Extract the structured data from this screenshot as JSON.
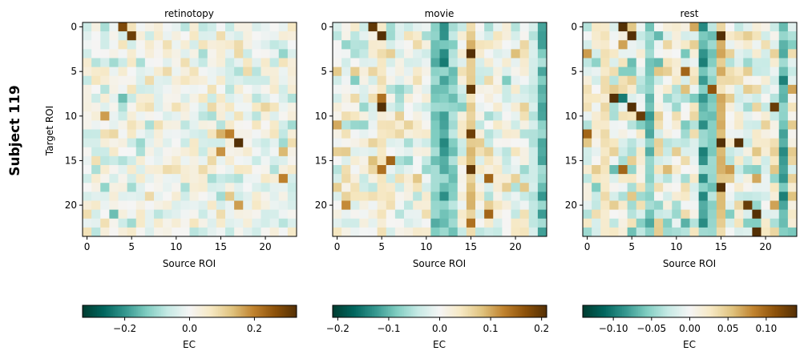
{
  "figure": {
    "subject_label": "Subject 119",
    "ylabel": "Target ROI",
    "xlabel": "Source ROI",
    "colorbar_label": "EC",
    "colormap": "BrBG_r",
    "colormap_stops": [
      "#003c30",
      "#01665e",
      "#35978f",
      "#80cdc1",
      "#c7eae5",
      "#f5f5f5",
      "#f6e8c3",
      "#dfc27d",
      "#bf812d",
      "#8c510a",
      "#543005"
    ]
  },
  "chart_data": [
    {
      "type": "heatmap",
      "title": "retinotopy",
      "xlabel": "Source ROI",
      "ylabel": "Target ROI",
      "n_rois": 24,
      "x_ticks": [
        0,
        5,
        10,
        15,
        20
      ],
      "y_ticks": [
        0,
        5,
        10,
        15,
        20
      ],
      "x_tick_labels": [
        "0",
        "5",
        "10",
        "15",
        "20"
      ],
      "y_tick_labels": [
        "0",
        "5",
        "10",
        "15",
        "20"
      ],
      "vmin": -0.33,
      "vmax": 0.33,
      "colorbar_ticks": [
        -0.2,
        0.0,
        0.2
      ],
      "colorbar_tick_labels": [
        "−0.2",
        "0.0",
        "0.2"
      ],
      "colorbar_label": "EC",
      "highlights": [
        [
          0,
          4,
          0.28
        ],
        [
          1,
          5,
          0.3
        ],
        [
          2,
          9,
          0.08
        ],
        [
          4,
          3,
          -0.1
        ],
        [
          5,
          2,
          0.06
        ],
        [
          6,
          1,
          0.07
        ],
        [
          5,
          9,
          0.09
        ],
        [
          8,
          4,
          -0.15
        ],
        [
          10,
          2,
          0.17
        ],
        [
          10,
          4,
          -0.06
        ],
        [
          12,
          15,
          0.15
        ],
        [
          12,
          16,
          0.2
        ],
        [
          13,
          17,
          0.33
        ],
        [
          14,
          15,
          0.18
        ],
        [
          14,
          22,
          0.14
        ],
        [
          15,
          1,
          0.08
        ],
        [
          17,
          22,
          0.2
        ],
        [
          18,
          5,
          -0.1
        ],
        [
          19,
          16,
          0.12
        ],
        [
          20,
          17,
          0.17
        ],
        [
          21,
          3,
          -0.15
        ],
        [
          22,
          2,
          0.08
        ],
        [
          22,
          12,
          0.07
        ],
        [
          8,
          15,
          0.06
        ],
        [
          11,
          8,
          0.08
        ]
      ],
      "seed": 7,
      "base_amp": 0.09,
      "column_bias": []
    },
    {
      "type": "heatmap",
      "title": "movie",
      "xlabel": "Source ROI",
      "ylabel": "",
      "n_rois": 24,
      "x_ticks": [
        0,
        5,
        10,
        15,
        20
      ],
      "y_ticks": [
        0,
        5,
        10,
        15,
        20
      ],
      "x_tick_labels": [
        "0",
        "5",
        "10",
        "15",
        "20"
      ],
      "y_tick_labels": [
        "0",
        "5",
        "10",
        "15",
        "20"
      ],
      "vmin": -0.21,
      "vmax": 0.21,
      "colorbar_ticks": [
        -0.2,
        -0.1,
        0.0,
        0.1,
        0.2
      ],
      "colorbar_tick_labels": [
        "−0.2",
        "−0.1",
        "0.0",
        "0.1",
        "0.2"
      ],
      "colorbar_label": "EC",
      "highlights": [
        [
          0,
          4,
          0.2
        ],
        [
          1,
          5,
          0.21
        ],
        [
          9,
          5,
          0.21
        ],
        [
          8,
          5,
          0.14
        ],
        [
          3,
          15,
          0.21
        ],
        [
          7,
          15,
          0.2
        ],
        [
          12,
          15,
          0.19
        ],
        [
          16,
          15,
          0.2
        ],
        [
          4,
          12,
          -0.15
        ],
        [
          10,
          12,
          -0.12
        ],
        [
          13,
          12,
          -0.14
        ],
        [
          17,
          17,
          0.15
        ],
        [
          21,
          17,
          0.15
        ],
        [
          22,
          15,
          0.14
        ],
        [
          15,
          6,
          0.15
        ],
        [
          11,
          0,
          0.1
        ],
        [
          20,
          1,
          0.12
        ],
        [
          16,
          5,
          0.14
        ],
        [
          2,
          23,
          -0.12
        ],
        [
          8,
          23,
          -0.1
        ]
      ],
      "seed": 23,
      "base_amp": 0.07,
      "column_bias": [
        [
          11,
          -0.08
        ],
        [
          12,
          -0.1
        ],
        [
          13,
          -0.07
        ],
        [
          15,
          0.07
        ],
        [
          23,
          -0.09
        ],
        [
          22,
          -0.04
        ],
        [
          5,
          0.04
        ]
      ]
    },
    {
      "type": "heatmap",
      "title": "rest",
      "xlabel": "Source ROI",
      "ylabel": "",
      "n_rois": 24,
      "x_ticks": [
        0,
        5,
        10,
        15,
        20
      ],
      "y_ticks": [
        0,
        5,
        10,
        15,
        20
      ],
      "x_tick_labels": [
        "0",
        "5",
        "10",
        "15",
        "20"
      ],
      "y_tick_labels": [
        "0",
        "5",
        "10",
        "15",
        "20"
      ],
      "vmin": -0.14,
      "vmax": 0.14,
      "colorbar_ticks": [
        -0.1,
        -0.05,
        0.0,
        0.05,
        0.1
      ],
      "colorbar_tick_labels": [
        "−0.10",
        "−0.05",
        "0.00",
        "0.05",
        "0.10"
      ],
      "colorbar_label": "EC",
      "highlights": [
        [
          0,
          4,
          0.14
        ],
        [
          1,
          5,
          0.14
        ],
        [
          1,
          15,
          0.14
        ],
        [
          8,
          3,
          0.14
        ],
        [
          8,
          4,
          -0.1
        ],
        [
          9,
          5,
          0.14
        ],
        [
          10,
          6,
          0.13
        ],
        [
          13,
          15,
          0.14
        ],
        [
          13,
          17,
          0.14
        ],
        [
          18,
          15,
          0.14
        ],
        [
          20,
          18,
          0.13
        ],
        [
          21,
          19,
          0.14
        ],
        [
          23,
          19,
          0.14
        ],
        [
          9,
          21,
          0.13
        ],
        [
          5,
          11,
          0.1
        ],
        [
          7,
          14,
          0.11
        ],
        [
          16,
          4,
          0.1
        ],
        [
          12,
          0,
          0.1
        ]
      ],
      "seed": 51,
      "base_amp": 0.06,
      "column_bias": [
        [
          7,
          -0.06
        ],
        [
          13,
          -0.07
        ],
        [
          14,
          -0.05
        ],
        [
          22,
          -0.07
        ],
        [
          15,
          0.05
        ],
        [
          2,
          0.03
        ]
      ]
    }
  ]
}
